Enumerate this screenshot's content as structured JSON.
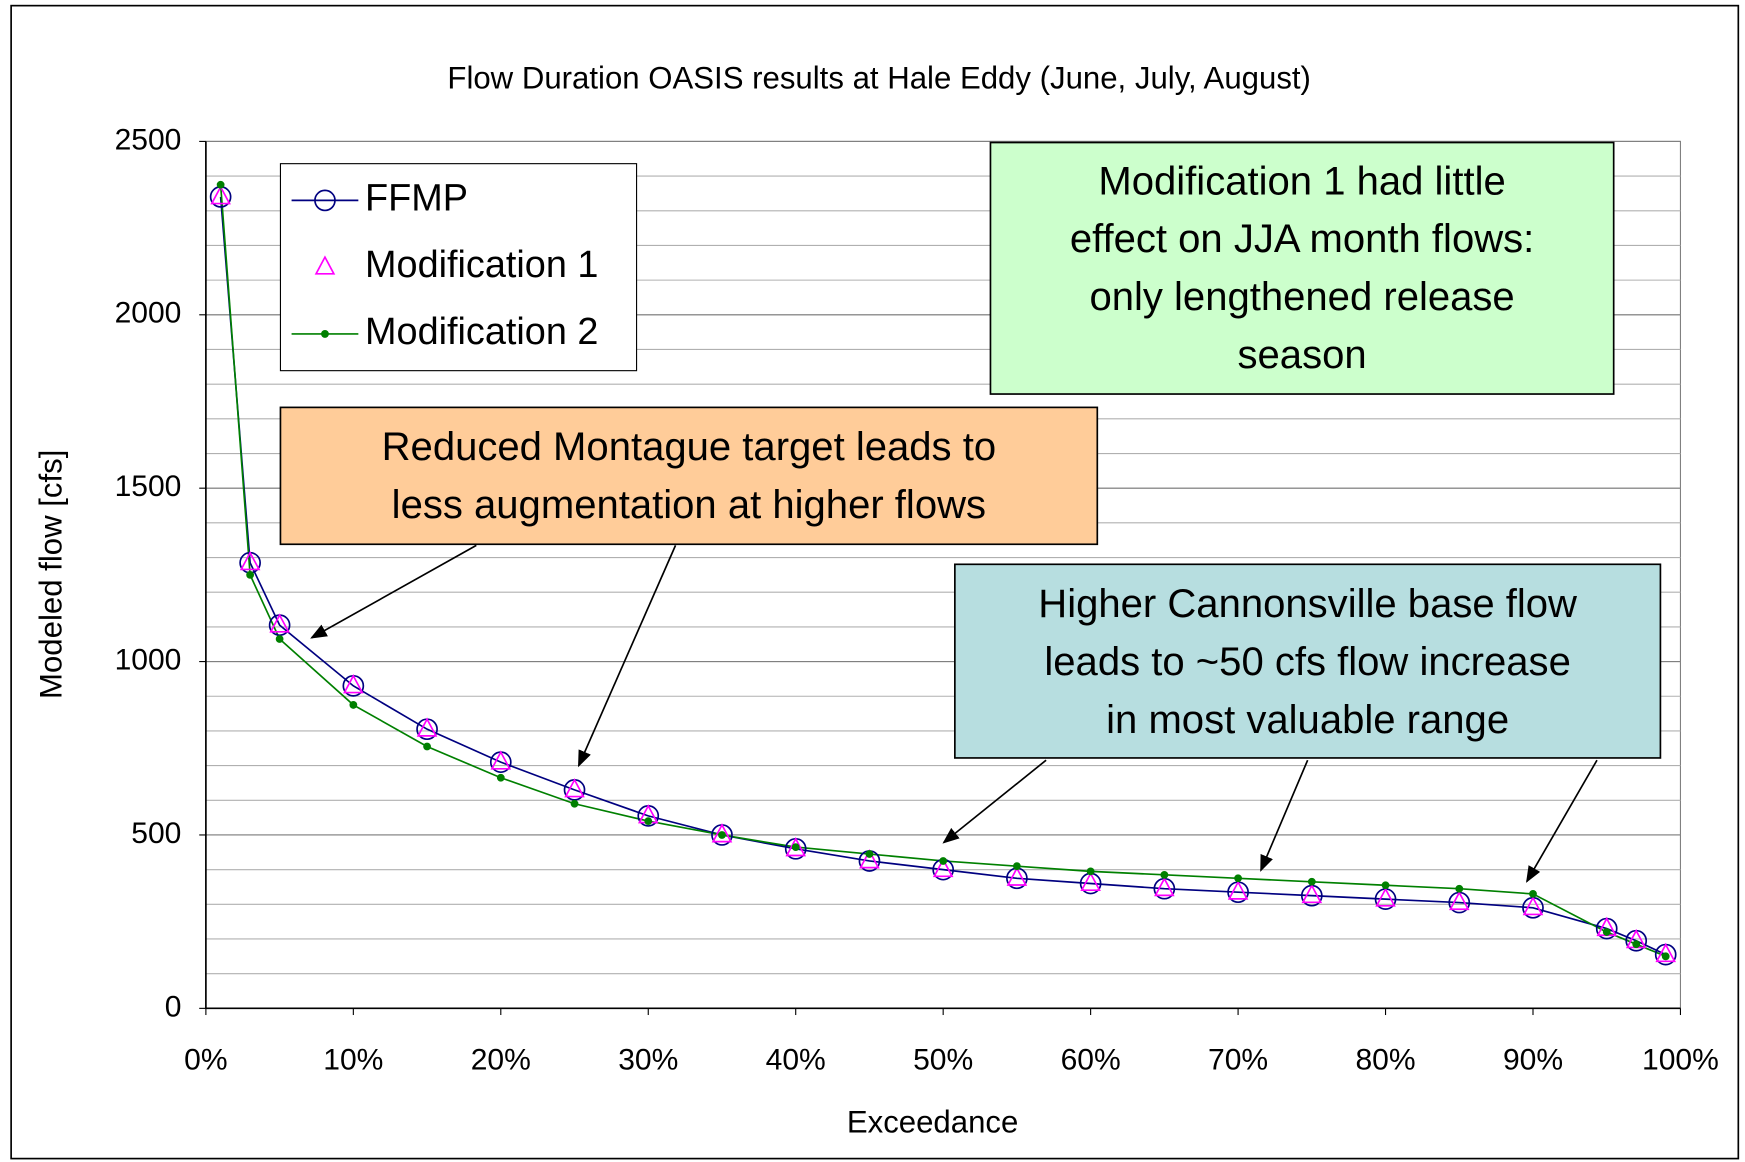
{
  "chart_data": {
    "type": "line",
    "title": "Flow Duration OASIS results at Hale Eddy (June, July, August)",
    "x_label": "Exceedance",
    "y_label": "Modeled flow [cfs]",
    "x": [
      1,
      3,
      5,
      10,
      15,
      20,
      25,
      30,
      35,
      40,
      45,
      50,
      55,
      60,
      65,
      70,
      75,
      80,
      85,
      90,
      95,
      97,
      99
    ],
    "series": [
      {
        "name": "FFMP",
        "color": "#000080",
        "marker": "circle",
        "line": true,
        "values": [
          2340,
          1285,
          1105,
          930,
          805,
          710,
          630,
          555,
          500,
          460,
          425,
          400,
          375,
          360,
          345,
          335,
          325,
          315,
          305,
          290,
          230,
          195,
          155
        ]
      },
      {
        "name": "Modification 1",
        "color": "#ff00ff",
        "marker": "triangle",
        "line": false,
        "values": [
          2340,
          1285,
          1105,
          930,
          805,
          710,
          630,
          555,
          500,
          460,
          425,
          400,
          375,
          360,
          345,
          335,
          325,
          315,
          305,
          290,
          230,
          195,
          155
        ]
      },
      {
        "name": "Modification 2",
        "color": "#008000",
        "marker": "dot",
        "line": true,
        "values": [
          2375,
          1250,
          1065,
          875,
          755,
          665,
          590,
          540,
          500,
          465,
          445,
          425,
          410,
          395,
          385,
          375,
          365,
          355,
          345,
          330,
          220,
          185,
          150
        ]
      }
    ],
    "xlim": [
      0,
      100
    ],
    "xticks": [
      {
        "value": 0,
        "label": "0%"
      },
      {
        "value": 10,
        "label": "10%"
      },
      {
        "value": 20,
        "label": "20%"
      },
      {
        "value": 30,
        "label": "30%"
      },
      {
        "value": 40,
        "label": "40%"
      },
      {
        "value": 50,
        "label": "50%"
      },
      {
        "value": 60,
        "label": "60%"
      },
      {
        "value": 70,
        "label": "70%"
      },
      {
        "value": 80,
        "label": "80%"
      },
      {
        "value": 90,
        "label": "90%"
      },
      {
        "value": 100,
        "label": "100%"
      }
    ],
    "ylim": [
      0,
      2500
    ],
    "yticks": [
      0,
      500,
      1000,
      1500,
      2000,
      2500
    ],
    "grid": true,
    "minor_grid_step": 100,
    "annotations": [
      {
        "lines": [
          "Modification 1 had little",
          "effect on JJA month flows:",
          "only lengthened release",
          "season"
        ],
        "color": "#ccffcc"
      },
      {
        "lines": [
          "Reduced Montague target leads to",
          "less augmentation at higher flows"
        ],
        "color": "#ffcc99"
      },
      {
        "lines": [
          "Higher Cannonsville base flow",
          "leads to ~50 cfs flow increase",
          "in most valuable range"
        ],
        "color": "#b7dee0"
      }
    ]
  }
}
